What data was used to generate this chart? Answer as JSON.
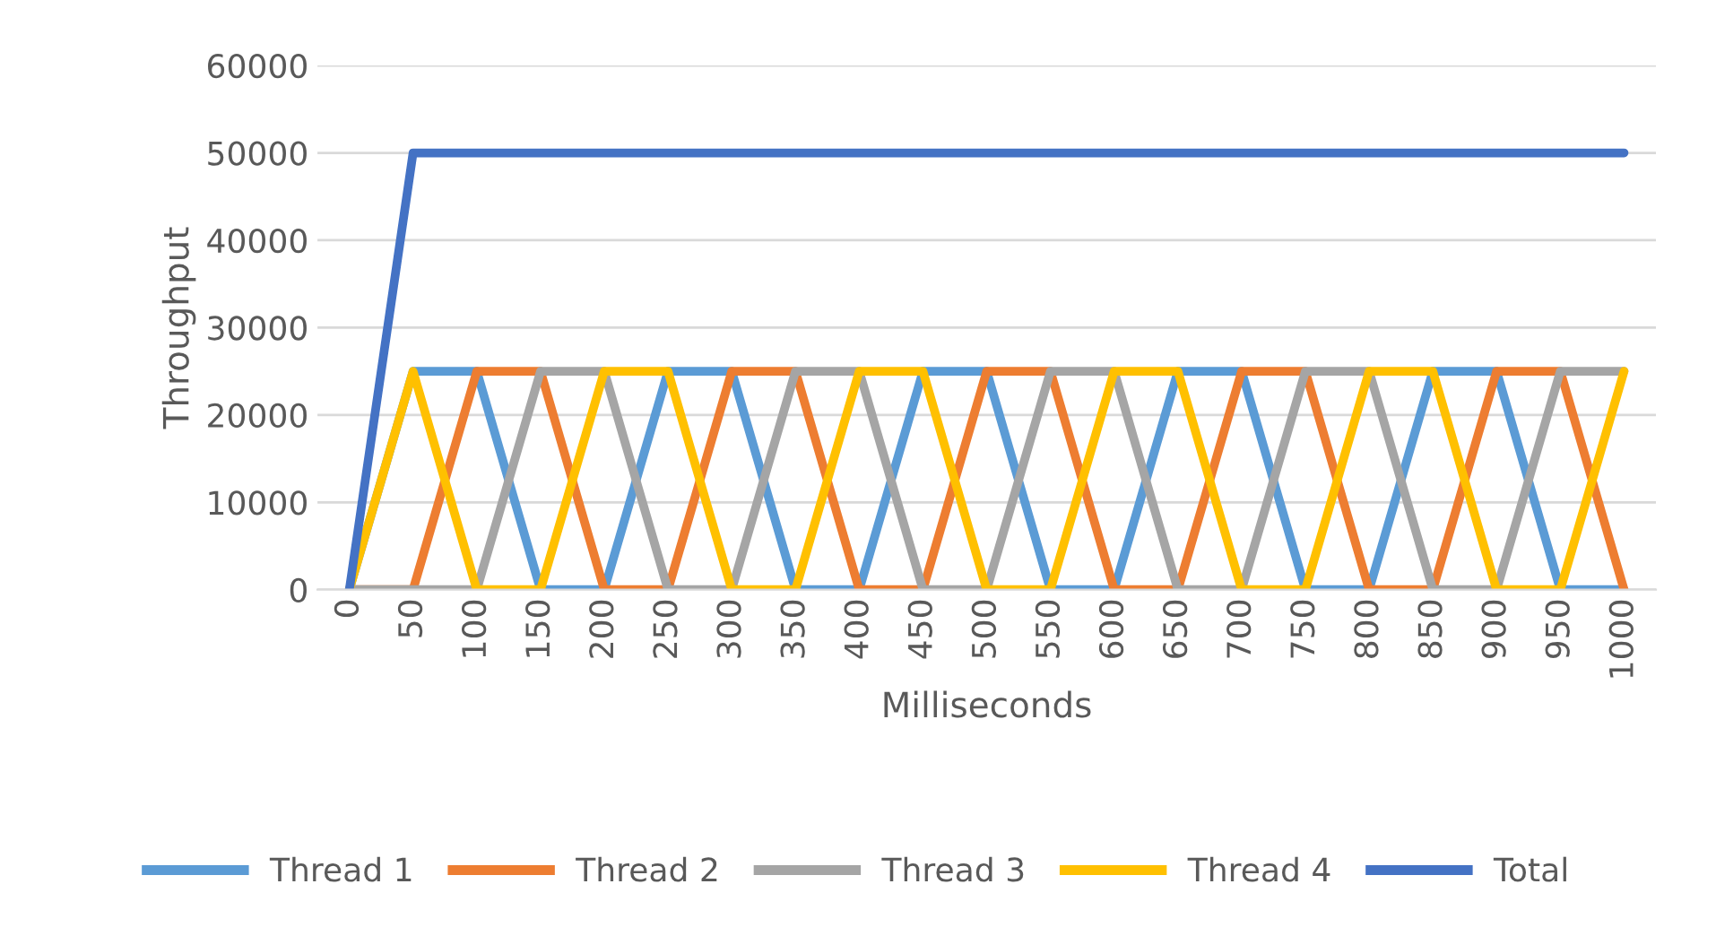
{
  "chart_data": {
    "type": "line",
    "xlabel": "Milliseconds",
    "ylabel": "Throughput",
    "categories": [
      "0",
      "50",
      "100",
      "150",
      "200",
      "250",
      "300",
      "350",
      "400",
      "450",
      "500",
      "550",
      "600",
      "650",
      "700",
      "750",
      "800",
      "850",
      "900",
      "950",
      "1000"
    ],
    "series": [
      {
        "name": "Thread 1",
        "color": "#5b9bd5",
        "values": [
          0,
          25000,
          25000,
          0,
          0,
          25000,
          25000,
          0,
          0,
          25000,
          25000,
          0,
          0,
          25000,
          25000,
          0,
          0,
          25000,
          25000,
          0,
          0
        ]
      },
      {
        "name": "Thread 2",
        "color": "#ed7d31",
        "values": [
          0,
          0,
          25000,
          25000,
          0,
          0,
          25000,
          25000,
          0,
          0,
          25000,
          25000,
          0,
          0,
          25000,
          25000,
          0,
          0,
          25000,
          25000,
          0
        ]
      },
      {
        "name": "Thread 3",
        "color": "#a5a5a5",
        "values": [
          0,
          0,
          0,
          25000,
          25000,
          0,
          0,
          25000,
          25000,
          0,
          0,
          25000,
          25000,
          0,
          0,
          25000,
          25000,
          0,
          0,
          25000,
          25000
        ]
      },
      {
        "name": "Thread 4",
        "color": "#ffc000",
        "values": [
          0,
          25000,
          0,
          0,
          25000,
          25000,
          0,
          0,
          25000,
          25000,
          0,
          0,
          25000,
          25000,
          0,
          0,
          25000,
          25000,
          0,
          0,
          25000
        ]
      },
      {
        "name": "Total",
        "color": "#4472c4",
        "values": [
          0,
          50000,
          50000,
          50000,
          50000,
          50000,
          50000,
          50000,
          50000,
          50000,
          50000,
          50000,
          50000,
          50000,
          50000,
          50000,
          50000,
          50000,
          50000,
          50000,
          50000
        ]
      }
    ],
    "ylim": [
      0,
      60000
    ],
    "yticks": [
      0,
      10000,
      20000,
      30000,
      40000,
      50000,
      60000
    ],
    "grid": "y",
    "legend": "bottom",
    "marker": "none",
    "line_style": "solid"
  }
}
